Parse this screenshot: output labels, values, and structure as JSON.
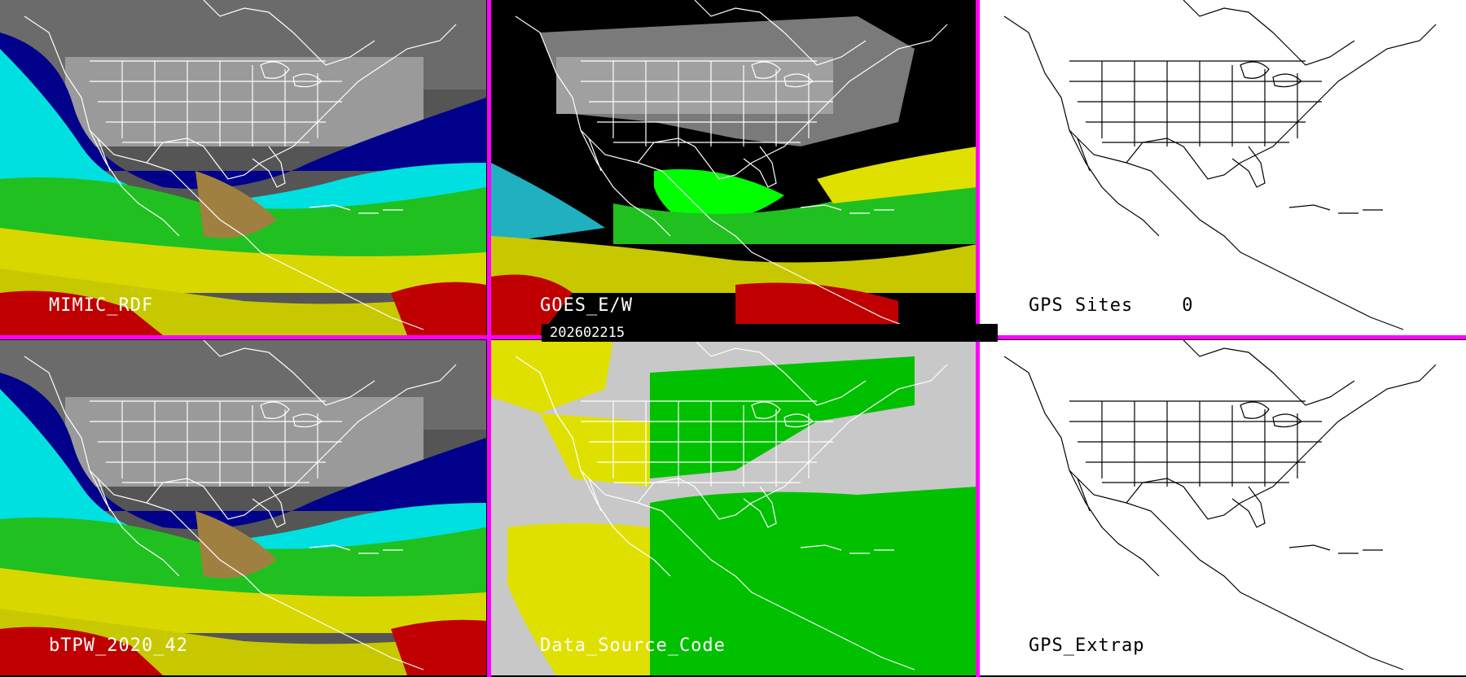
{
  "panels": [
    {
      "label": "MIMIC_RDF"
    },
    {
      "label": "GOES_E/W"
    },
    {
      "label": "GPS Sites",
      "count": "0"
    },
    {
      "label": "bTPW_2020_42"
    },
    {
      "label": "Data_Source_Code"
    },
    {
      "label": "GPS_Extrap"
    }
  ],
  "timestamp": "202602215",
  "colors": {
    "divider": "#ff00ff",
    "tpw_scale": [
      "#555555",
      "#9a9a9a",
      "#00008b",
      "#2040c0",
      "#00ffff",
      "#00c000",
      "#40ff40",
      "#a0a040",
      "#ffff00",
      "#c8c800",
      "#c00000"
    ],
    "source_codes": [
      "#c8c8c8",
      "#e0e000",
      "#00c000",
      "#000000"
    ]
  }
}
